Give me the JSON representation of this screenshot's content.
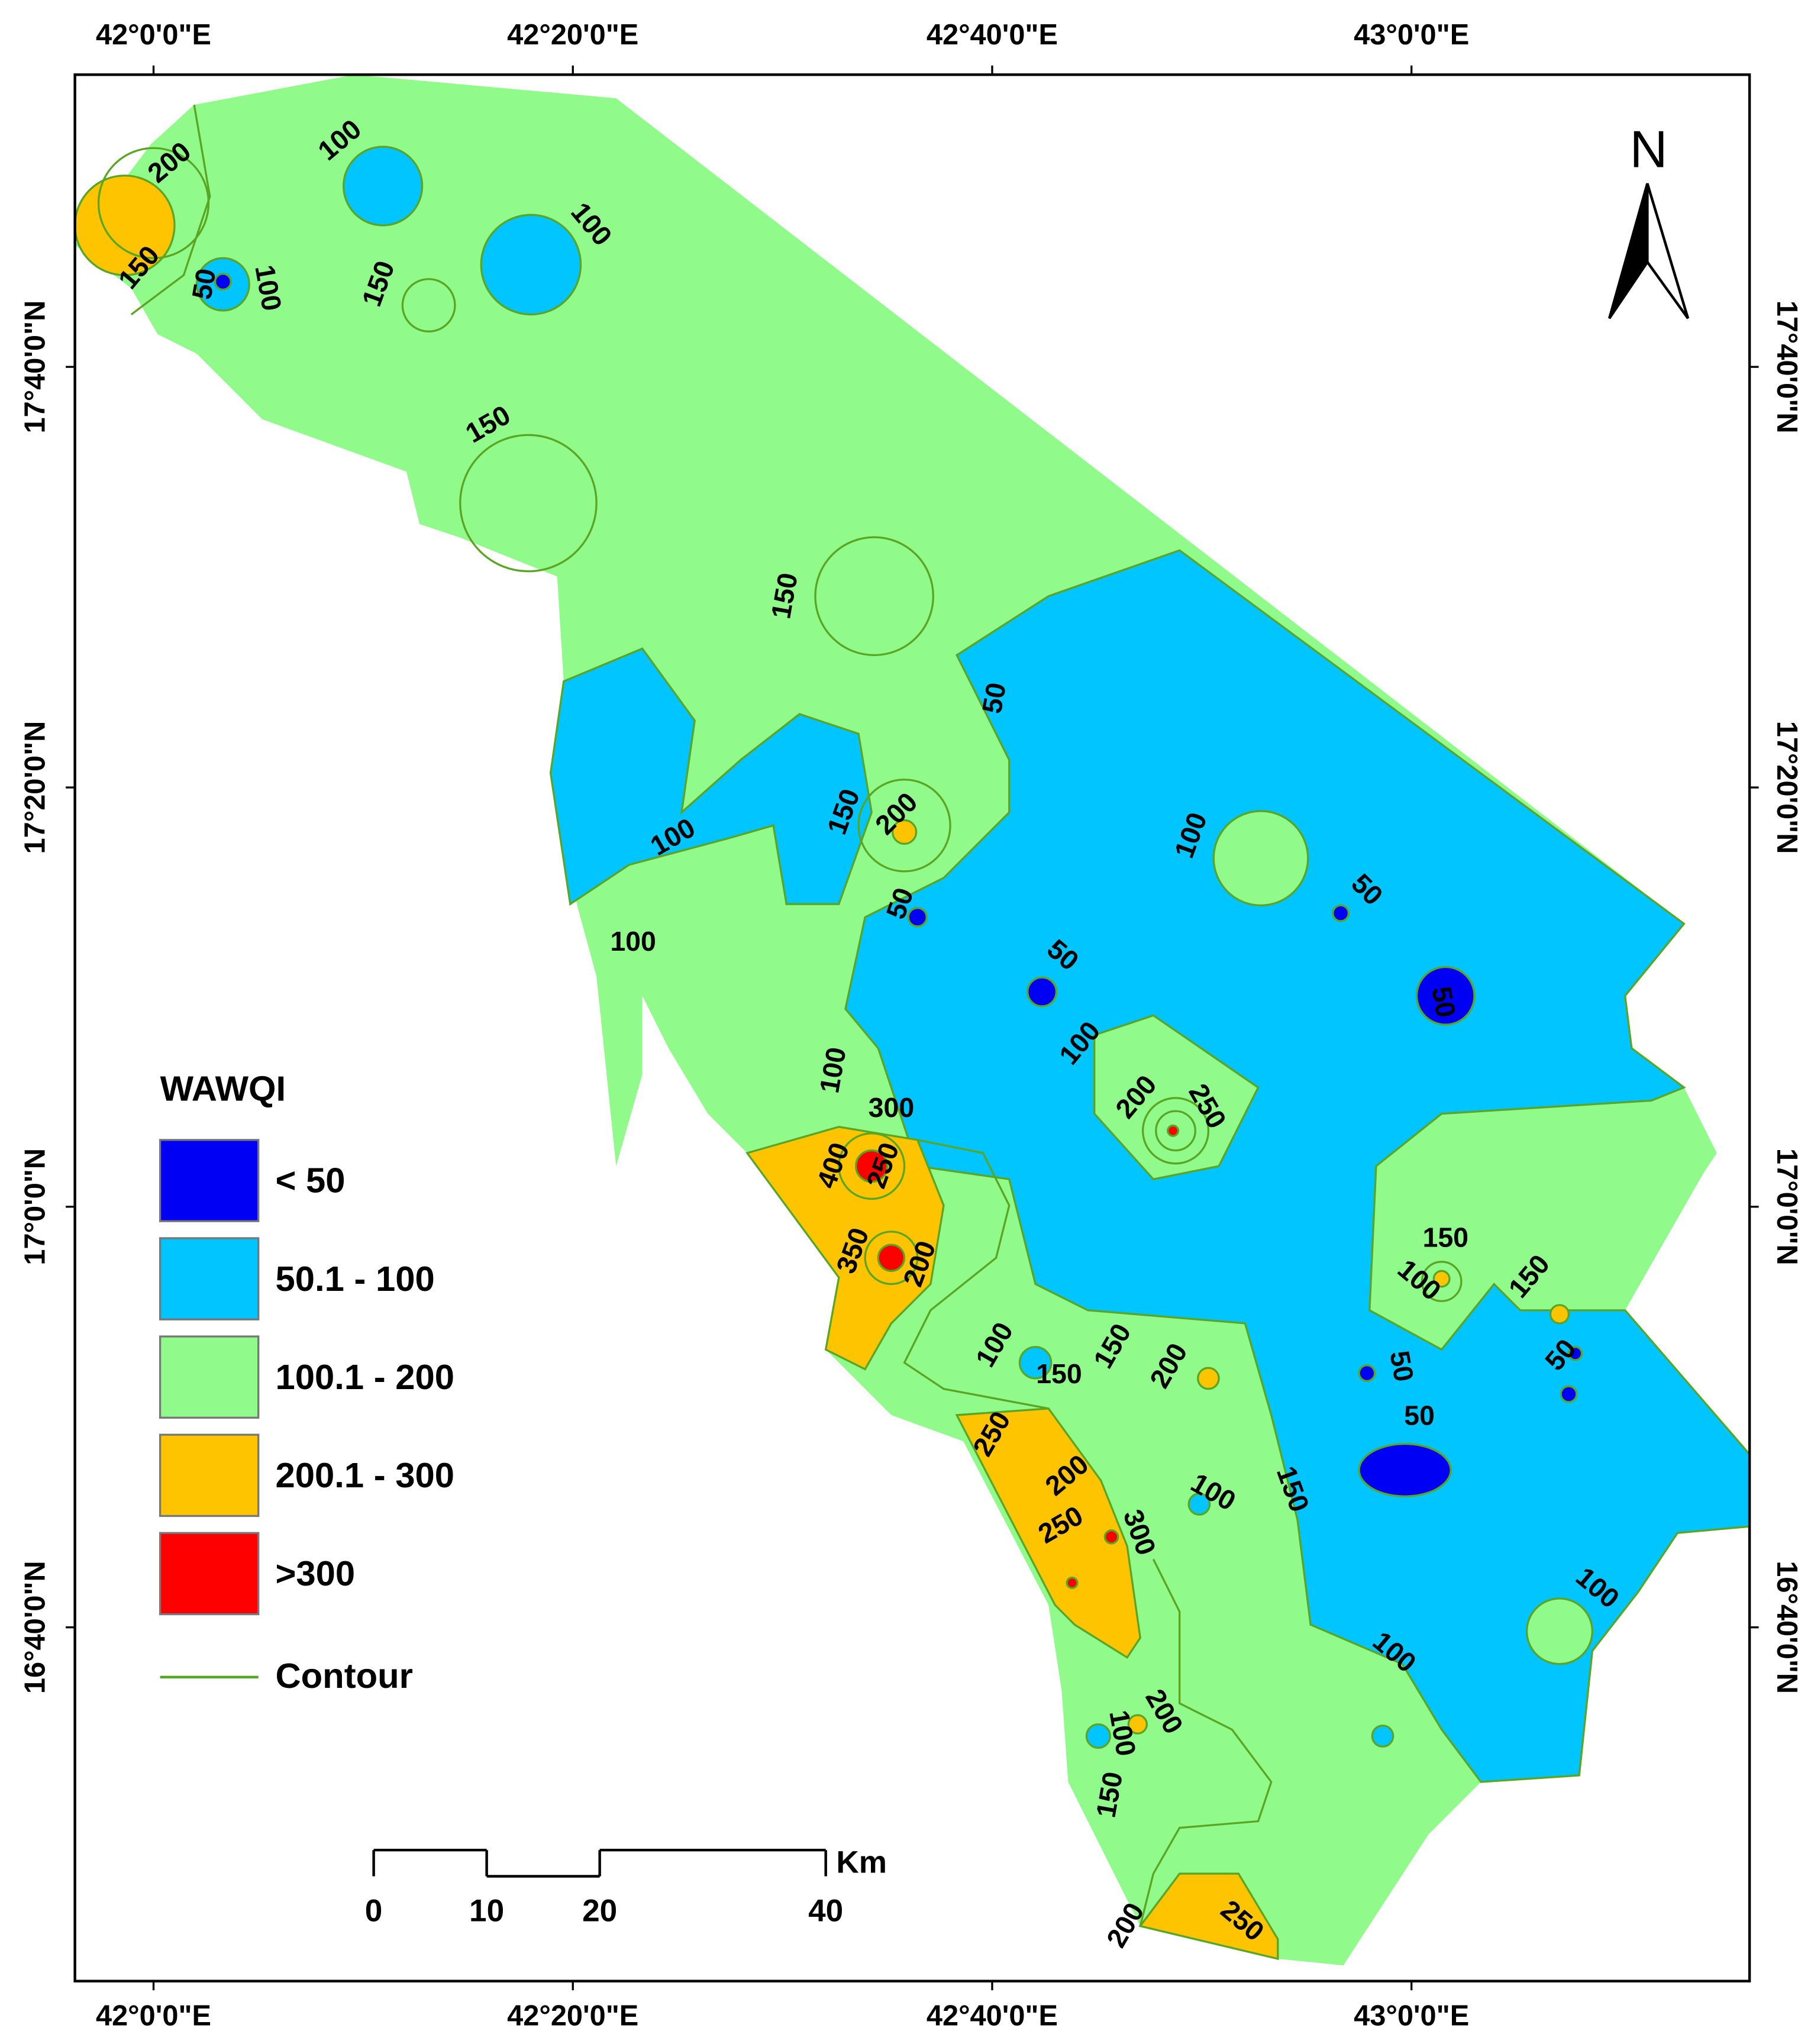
{
  "map": {
    "top_axis": [
      "42°0'0\"E",
      "42°20'0\"E",
      "42°40'0\"E",
      "43°0'0\"E"
    ],
    "bottom_axis": [
      "42°0'0\"E",
      "42°20'0\"E",
      "42°40'0\"E",
      "43°0'0\"E"
    ],
    "left_axis": [
      "17°40'0\"N",
      "17°20'0\"N",
      "17°0'0\"N",
      "16°40'0\"N"
    ],
    "right_axis": [
      "17°40'0\"N",
      "17°20'0\"N",
      "17°0'0\"N",
      "16°40'0\"N"
    ],
    "north": "N",
    "legend": {
      "title": "WAWQI",
      "items": [
        {
          "label": "< 50",
          "color": "#0000f5"
        },
        {
          "label": "50.1 - 100",
          "color": "#00c5ff"
        },
        {
          "label": "100.1 - 200",
          "color": "#90fa8a"
        },
        {
          "label": "200.1 - 300",
          "color": "#ffc400"
        },
        {
          "label": ">300",
          "color": "#ff0000"
        }
      ],
      "contour": {
        "label": "Contour",
        "color": "#5aa522"
      }
    },
    "scale_bar": {
      "ticks": [
        0,
        10,
        20,
        40
      ],
      "unit": "Km"
    },
    "contour_labels": [
      "100",
      "200",
      "100",
      "150",
      "50",
      "100",
      "150",
      "150",
      "150",
      "50",
      "150",
      "200",
      "100",
      "100",
      "50",
      "50",
      "100",
      "50",
      "50",
      "100",
      "100",
      "200",
      "250",
      "300",
      "400",
      "250",
      "150",
      "100",
      "150",
      "350",
      "200",
      "100",
      "150",
      "200",
      "150",
      "50",
      "50",
      "50",
      "250",
      "200",
      "100",
      "150",
      "250",
      "300",
      "100",
      "100",
      "200",
      "100",
      "150",
      "200",
      "250"
    ]
  }
}
